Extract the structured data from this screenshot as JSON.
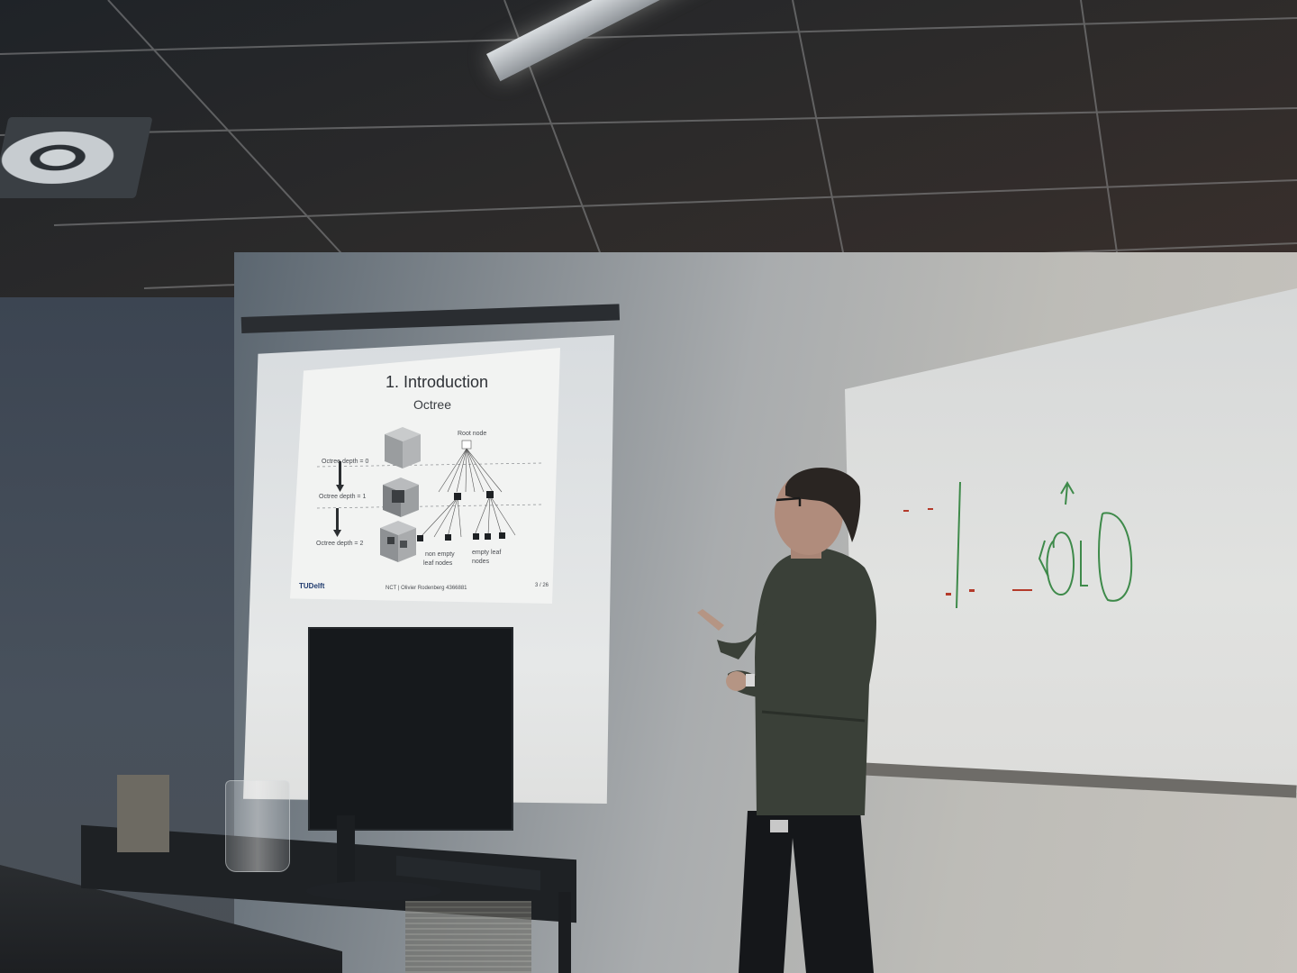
{
  "slide": {
    "title": "1. Introduction",
    "subtitle": "Octree",
    "labels": {
      "depth0": "Octree depth = 0",
      "depth1": "Octree depth = 1",
      "depth2": "Octree depth = 2",
      "root": "Root node",
      "non_empty": "non empty",
      "non_empty_2": "leaf nodes",
      "empty": "empty leaf",
      "empty_2": "nodes"
    },
    "logo": "TUDelft",
    "footer": "NCT | Olivier Rodenberg  4366881",
    "page": "3 / 26"
  },
  "colors": {
    "slide_background": "#f2f3f2",
    "marker_green": "#3e8a4a",
    "marker_red": "#b43a2a"
  }
}
